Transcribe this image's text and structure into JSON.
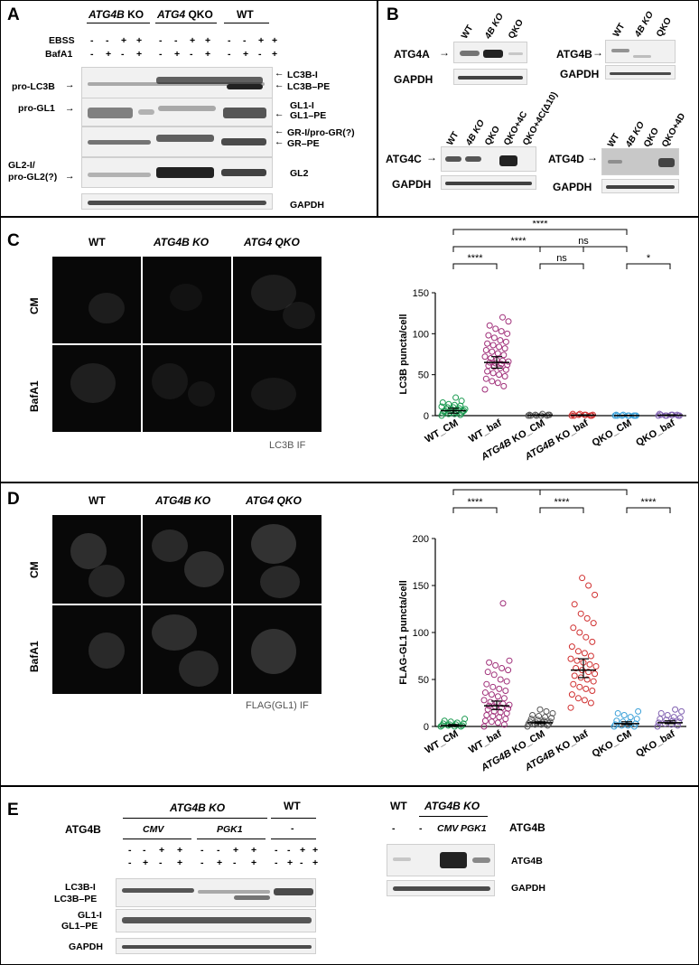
{
  "panels": {
    "A": {
      "letter": "A",
      "groups": [
        "ATG4B KO",
        "ATG4 QKO",
        "WT"
      ],
      "group_italic": [
        "ATG4B",
        "ATG4"
      ],
      "group_suffix": [
        " KO",
        " QKO"
      ],
      "row_labels": [
        "EBSS",
        "BafA1"
      ],
      "ebss": [
        "-",
        "-",
        "+",
        "+",
        "-",
        "-",
        "+",
        "+",
        "-",
        "-",
        "+",
        "+"
      ],
      "bafa1": [
        "-",
        "+",
        "-",
        "+",
        "-",
        "+",
        "-",
        "+",
        "-",
        "+",
        "-",
        "+"
      ],
      "left_labels": [
        "pro-LC3B",
        "pro-GL1",
        "GL2-I/",
        "pro-GL2(?)"
      ],
      "right_labels": [
        "LC3B-I",
        "LC3B–PE",
        "GL1-I",
        "GL1–PE",
        "GR-I/pro-GR(?)",
        "GR–PE",
        "GL2",
        "GAPDH"
      ]
    },
    "B": {
      "letter": "B",
      "lanes_a": [
        "WT",
        "4B KO",
        "QKO"
      ],
      "lanes_c": [
        "WT",
        "4B KO",
        "QKO",
        "QKO+4C",
        "QKO+4C(Δ10)"
      ],
      "lanes_d": [
        "WT",
        "4B KO",
        "QKO",
        "QKO+4D"
      ],
      "labels": [
        "ATG4A",
        "ATG4B",
        "ATG4C",
        "ATG4D"
      ],
      "loading": "GAPDH"
    },
    "C": {
      "letter": "C",
      "col_heads": [
        "WT",
        "ATG4B KO",
        "ATG4 QKO"
      ],
      "row_heads": [
        "CM",
        "BafA1"
      ],
      "caption": "LC3B IF",
      "sig": [
        "****",
        "****",
        "*",
        "****",
        "****",
        "ns",
        "****",
        "ns",
        "*"
      ]
    },
    "D": {
      "letter": "D",
      "col_heads": [
        "WT",
        "ATG4B KO",
        "ATG4 QKO"
      ],
      "row_heads": [
        "CM",
        "BafA1"
      ],
      "caption": "FLAG(GL1) IF",
      "sig": [
        "****",
        "****",
        "****",
        "****",
        "****",
        "****",
        "****",
        "****",
        "****"
      ]
    },
    "E": {
      "letter": "E",
      "groups": [
        "ATG4B KO",
        "WT"
      ],
      "atg4b_label": "ATG4B",
      "sub_groups": [
        "CMV",
        "PGK1",
        "-"
      ],
      "row1": [
        "-",
        "-",
        "+",
        "+",
        "-",
        "-",
        "+",
        "+",
        "-",
        "-",
        "+",
        "+"
      ],
      "row2": [
        "-",
        "+",
        "-",
        "+",
        "-",
        "+",
        "-",
        "+",
        "-",
        "+",
        "-",
        "+"
      ],
      "labels": [
        "LC3B-I",
        "LC3B–PE",
        "GL1-I",
        "GL1–PE",
        "GAPDH"
      ],
      "right_heads": [
        "WT",
        "ATG4B KO"
      ],
      "right_lanes": [
        "-",
        "-",
        "CMV",
        "PGK1"
      ],
      "right_labels": [
        "ATG4B",
        "ATG4B",
        "GAPDH"
      ]
    }
  },
  "chart_data": [
    {
      "type": "scatter",
      "ylabel": "LC3B puncta/cell",
      "ylim": [
        0,
        150
      ],
      "yticks": [
        0,
        50,
        100,
        150
      ],
      "categories": [
        "WT_CM",
        "WT_baf",
        "ATG4B KO_CM",
        "ATG4B KO_baf",
        "QKO_CM",
        "QKO_baf"
      ],
      "colors": [
        "#1a9a50",
        "#a0307a",
        "#555555",
        "#d03030",
        "#3aa0d8",
        "#8060b0"
      ],
      "means": [
        6,
        65,
        0.5,
        0.5,
        0.2,
        0.5
      ],
      "error": [
        [
          3,
          9
        ],
        [
          58,
          72
        ],
        [
          0,
          1
        ],
        [
          0,
          1
        ],
        [
          0,
          0.5
        ],
        [
          0,
          1
        ]
      ],
      "points": [
        [
          0,
          1,
          2,
          2,
          3,
          3,
          4,
          4,
          5,
          5,
          5,
          6,
          6,
          6,
          7,
          7,
          8,
          8,
          9,
          10,
          10,
          11,
          12,
          13,
          14,
          16,
          18,
          22
        ],
        [
          32,
          36,
          40,
          42,
          45,
          48,
          50,
          52,
          54,
          56,
          58,
          60,
          61,
          62,
          63,
          64,
          65,
          66,
          67,
          68,
          70,
          72,
          74,
          76,
          78,
          80,
          82,
          84,
          86,
          88,
          90,
          92,
          95,
          98,
          100,
          103,
          106,
          110,
          115,
          120
        ],
        [
          0,
          0,
          0,
          1,
          1,
          1,
          2,
          0,
          0,
          1
        ],
        [
          0,
          0,
          1,
          1,
          2,
          0,
          1,
          2,
          0,
          1
        ],
        [
          0,
          0,
          0,
          0,
          1,
          0,
          0,
          1,
          0,
          0
        ],
        [
          0,
          1,
          1,
          0,
          2,
          0,
          1,
          0,
          1,
          0
        ]
      ]
    },
    {
      "type": "scatter",
      "ylabel": "FLAG-GL1 puncta/cell",
      "ylim": [
        0,
        200
      ],
      "yticks": [
        0,
        50,
        100,
        150,
        200
      ],
      "categories": [
        "WT_CM",
        "WT_baf",
        "ATG4B KO_CM",
        "ATG4B KO_baf",
        "QKO_CM",
        "QKO_baf"
      ],
      "colors": [
        "#1a9a50",
        "#a0307a",
        "#555555",
        "#d03030",
        "#3aa0d8",
        "#8060b0"
      ],
      "means": [
        1,
        22,
        4,
        60,
        3,
        4
      ],
      "error": [
        [
          0,
          2
        ],
        [
          18,
          27
        ],
        [
          3,
          5
        ],
        [
          52,
          72
        ],
        [
          2,
          5
        ],
        [
          3,
          6
        ]
      ],
      "points": [
        [
          0,
          0,
          0,
          1,
          1,
          1,
          2,
          2,
          3,
          3,
          4,
          5,
          6,
          8
        ],
        [
          0,
          2,
          4,
          5,
          6,
          8,
          10,
          11,
          12,
          14,
          15,
          16,
          18,
          19,
          20,
          21,
          22,
          23,
          24,
          25,
          26,
          28,
          30,
          32,
          34,
          36,
          38,
          40,
          42,
          45,
          48,
          50,
          55,
          58,
          60,
          62,
          65,
          68,
          70,
          131
        ],
        [
          0,
          1,
          2,
          2,
          3,
          3,
          4,
          4,
          5,
          5,
          6,
          7,
          8,
          9,
          10,
          11,
          12,
          14,
          16,
          18
        ],
        [
          20,
          25,
          28,
          30,
          34,
          38,
          40,
          42,
          45,
          48,
          50,
          52,
          54,
          56,
          58,
          60,
          62,
          64,
          66,
          68,
          70,
          72,
          75,
          78,
          80,
          85,
          90,
          95,
          100,
          105,
          110,
          115,
          120,
          130,
          140,
          150,
          158
        ],
        [
          0,
          0,
          1,
          1,
          2,
          3,
          4,
          5,
          6,
          8,
          10,
          12,
          14,
          16
        ],
        [
          0,
          1,
          2,
          3,
          4,
          5,
          6,
          7,
          8,
          9,
          10,
          12,
          14,
          16,
          18
        ]
      ]
    }
  ]
}
